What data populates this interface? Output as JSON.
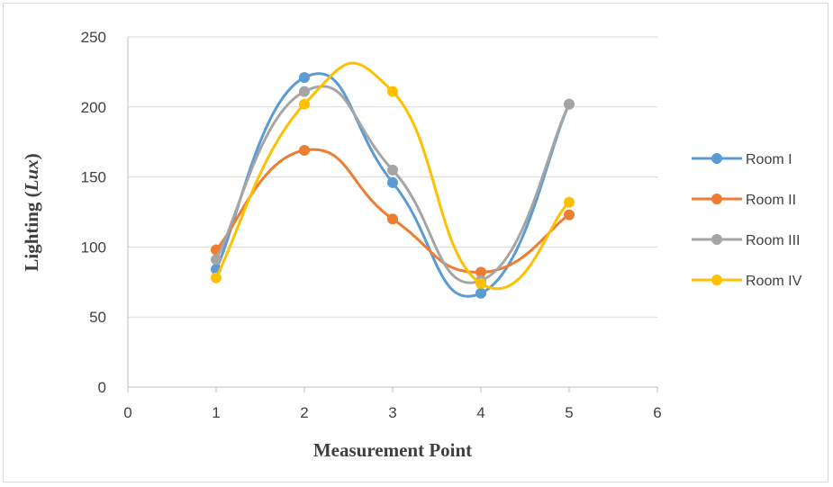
{
  "chart_data": {
    "type": "line",
    "smooth": true,
    "xlabel": "Measurement Point",
    "ylabel_prefix": "Lighting (",
    "ylabel_unit": "Lux",
    "ylabel_suffix": ")",
    "xlim": [
      0,
      6
    ],
    "ylim": [
      0,
      250
    ],
    "x_ticks": [
      "0",
      "1",
      "2",
      "3",
      "4",
      "5",
      "6"
    ],
    "y_ticks": [
      "0",
      "50",
      "100",
      "150",
      "200",
      "250"
    ],
    "grid": true,
    "legend_position": "right",
    "x": [
      1,
      2,
      3,
      4,
      5
    ],
    "series": [
      {
        "name": "Room I",
        "color": "#5b9bd5",
        "values": [
          84,
          221,
          146,
          67,
          202
        ]
      },
      {
        "name": "Room II",
        "color": "#ed7d31",
        "values": [
          98,
          169,
          120,
          82,
          123
        ]
      },
      {
        "name": "Room III",
        "color": "#a5a5a5",
        "values": [
          91,
          211,
          155,
          76,
          202
        ]
      },
      {
        "name": "Room IV",
        "color": "#ffc000",
        "values": [
          78,
          202,
          211,
          74,
          132
        ]
      }
    ]
  }
}
